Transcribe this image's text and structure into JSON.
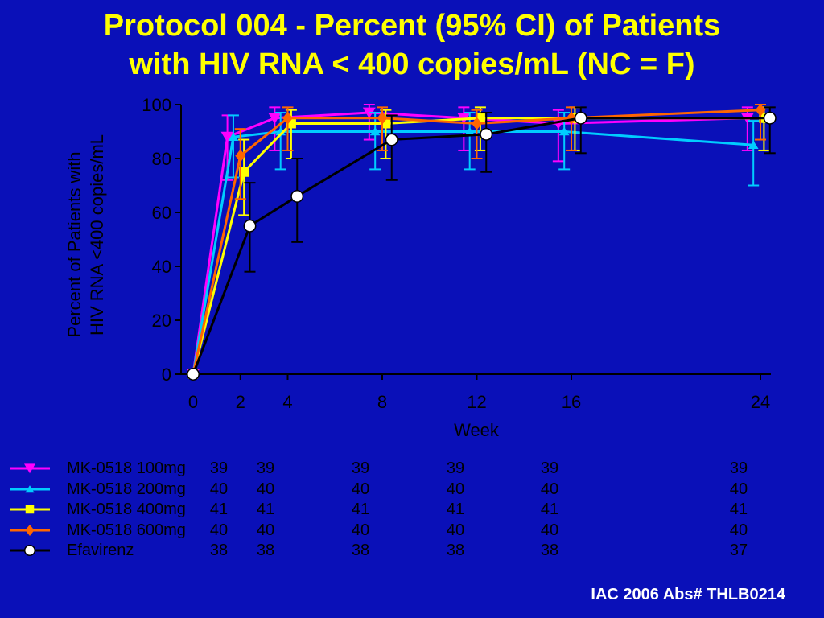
{
  "title": {
    "line1": "Protocol 004 - Percent (95% CI) of Patients",
    "line2": "with HIV RNA < 400 copies/mL (NC = F)"
  },
  "footer": "IAC 2006 Abs# THLB0214",
  "colors": {
    "background": "#0A10B8",
    "title": "#FFFF00",
    "axis": "#000000",
    "footer": "#FFFFFF"
  },
  "chart_data": {
    "type": "line",
    "title": "Protocol 004 - Percent (95% CI) of Patients with HIV RNA < 400 copies/mL (NC = F)",
    "xlabel": "Week",
    "ylabel_line1": "Percent of Patients with",
    "ylabel_line2": "HIV RNA <400 copies/mL",
    "x_ticks": [
      "0",
      "2",
      "4",
      "8",
      "12",
      "16",
      "24"
    ],
    "y_ticks": [
      "0",
      "20",
      "40",
      "60",
      "80",
      "100"
    ],
    "xlim": [
      0,
      24
    ],
    "ylim": [
      0,
      100
    ],
    "grid": false,
    "legend_position": "bottom",
    "series": [
      {
        "name": "MK-0518 100mg",
        "color": "#FF00FF",
        "marker": "triangle-down",
        "x": [
          0,
          2,
          4,
          8,
          12,
          16,
          24
        ],
        "y": [
          0,
          88,
          95,
          97,
          95,
          93,
          95
        ],
        "ci_low": [
          0,
          72,
          83,
          87,
          83,
          79,
          83
        ],
        "ci_high": [
          0,
          96,
          99,
          100,
          99,
          98,
          99
        ],
        "n": [
          "39",
          "39",
          "39",
          "39",
          "39",
          "39"
        ]
      },
      {
        "name": "MK-0518 200mg",
        "color": "#00CCFF",
        "marker": "triangle-up",
        "x": [
          0,
          2,
          4,
          8,
          12,
          16,
          24
        ],
        "y": [
          0,
          88,
          90,
          90,
          90,
          90,
          85
        ],
        "ci_low": [
          0,
          73,
          76,
          76,
          76,
          76,
          70
        ],
        "ci_high": [
          0,
          96,
          97,
          97,
          97,
          97,
          94
        ],
        "n": [
          "40",
          "40",
          "40",
          "40",
          "40",
          "40"
        ]
      },
      {
        "name": "MK-0518 400mg",
        "color": "#FFFF00",
        "marker": "square",
        "x": [
          0,
          2,
          4,
          8,
          12,
          16,
          24
        ],
        "y": [
          0,
          75,
          93,
          93,
          95,
          95,
          95
        ],
        "ci_low": [
          0,
          59,
          80,
          80,
          83,
          83,
          83
        ],
        "ci_high": [
          0,
          87,
          98,
          98,
          99,
          99,
          99
        ],
        "n": [
          "41",
          "41",
          "41",
          "41",
          "41",
          "41"
        ]
      },
      {
        "name": "MK-0518 600mg",
        "color": "#FF6600",
        "marker": "diamond",
        "x": [
          0,
          2,
          4,
          8,
          12,
          16,
          24
        ],
        "y": [
          0,
          81,
          95,
          95,
          93,
          95,
          98
        ],
        "ci_low": [
          0,
          65,
          83,
          83,
          80,
          83,
          87
        ],
        "ci_high": [
          0,
          91,
          99,
          99,
          98,
          99,
          100
        ],
        "n": [
          "40",
          "40",
          "40",
          "40",
          "40",
          "40"
        ]
      },
      {
        "name": "Efavirenz",
        "color": "#000000",
        "marker": "circle",
        "x": [
          0,
          2,
          4,
          8,
          12,
          16,
          24
        ],
        "y": [
          0,
          55,
          66,
          87,
          89,
          95,
          95
        ],
        "ci_low": [
          0,
          38,
          49,
          72,
          75,
          82,
          82
        ],
        "ci_high": [
          0,
          71,
          80,
          96,
          97,
          99,
          99
        ],
        "n": [
          "38",
          "38",
          "38",
          "38",
          "38",
          "37"
        ]
      }
    ]
  }
}
